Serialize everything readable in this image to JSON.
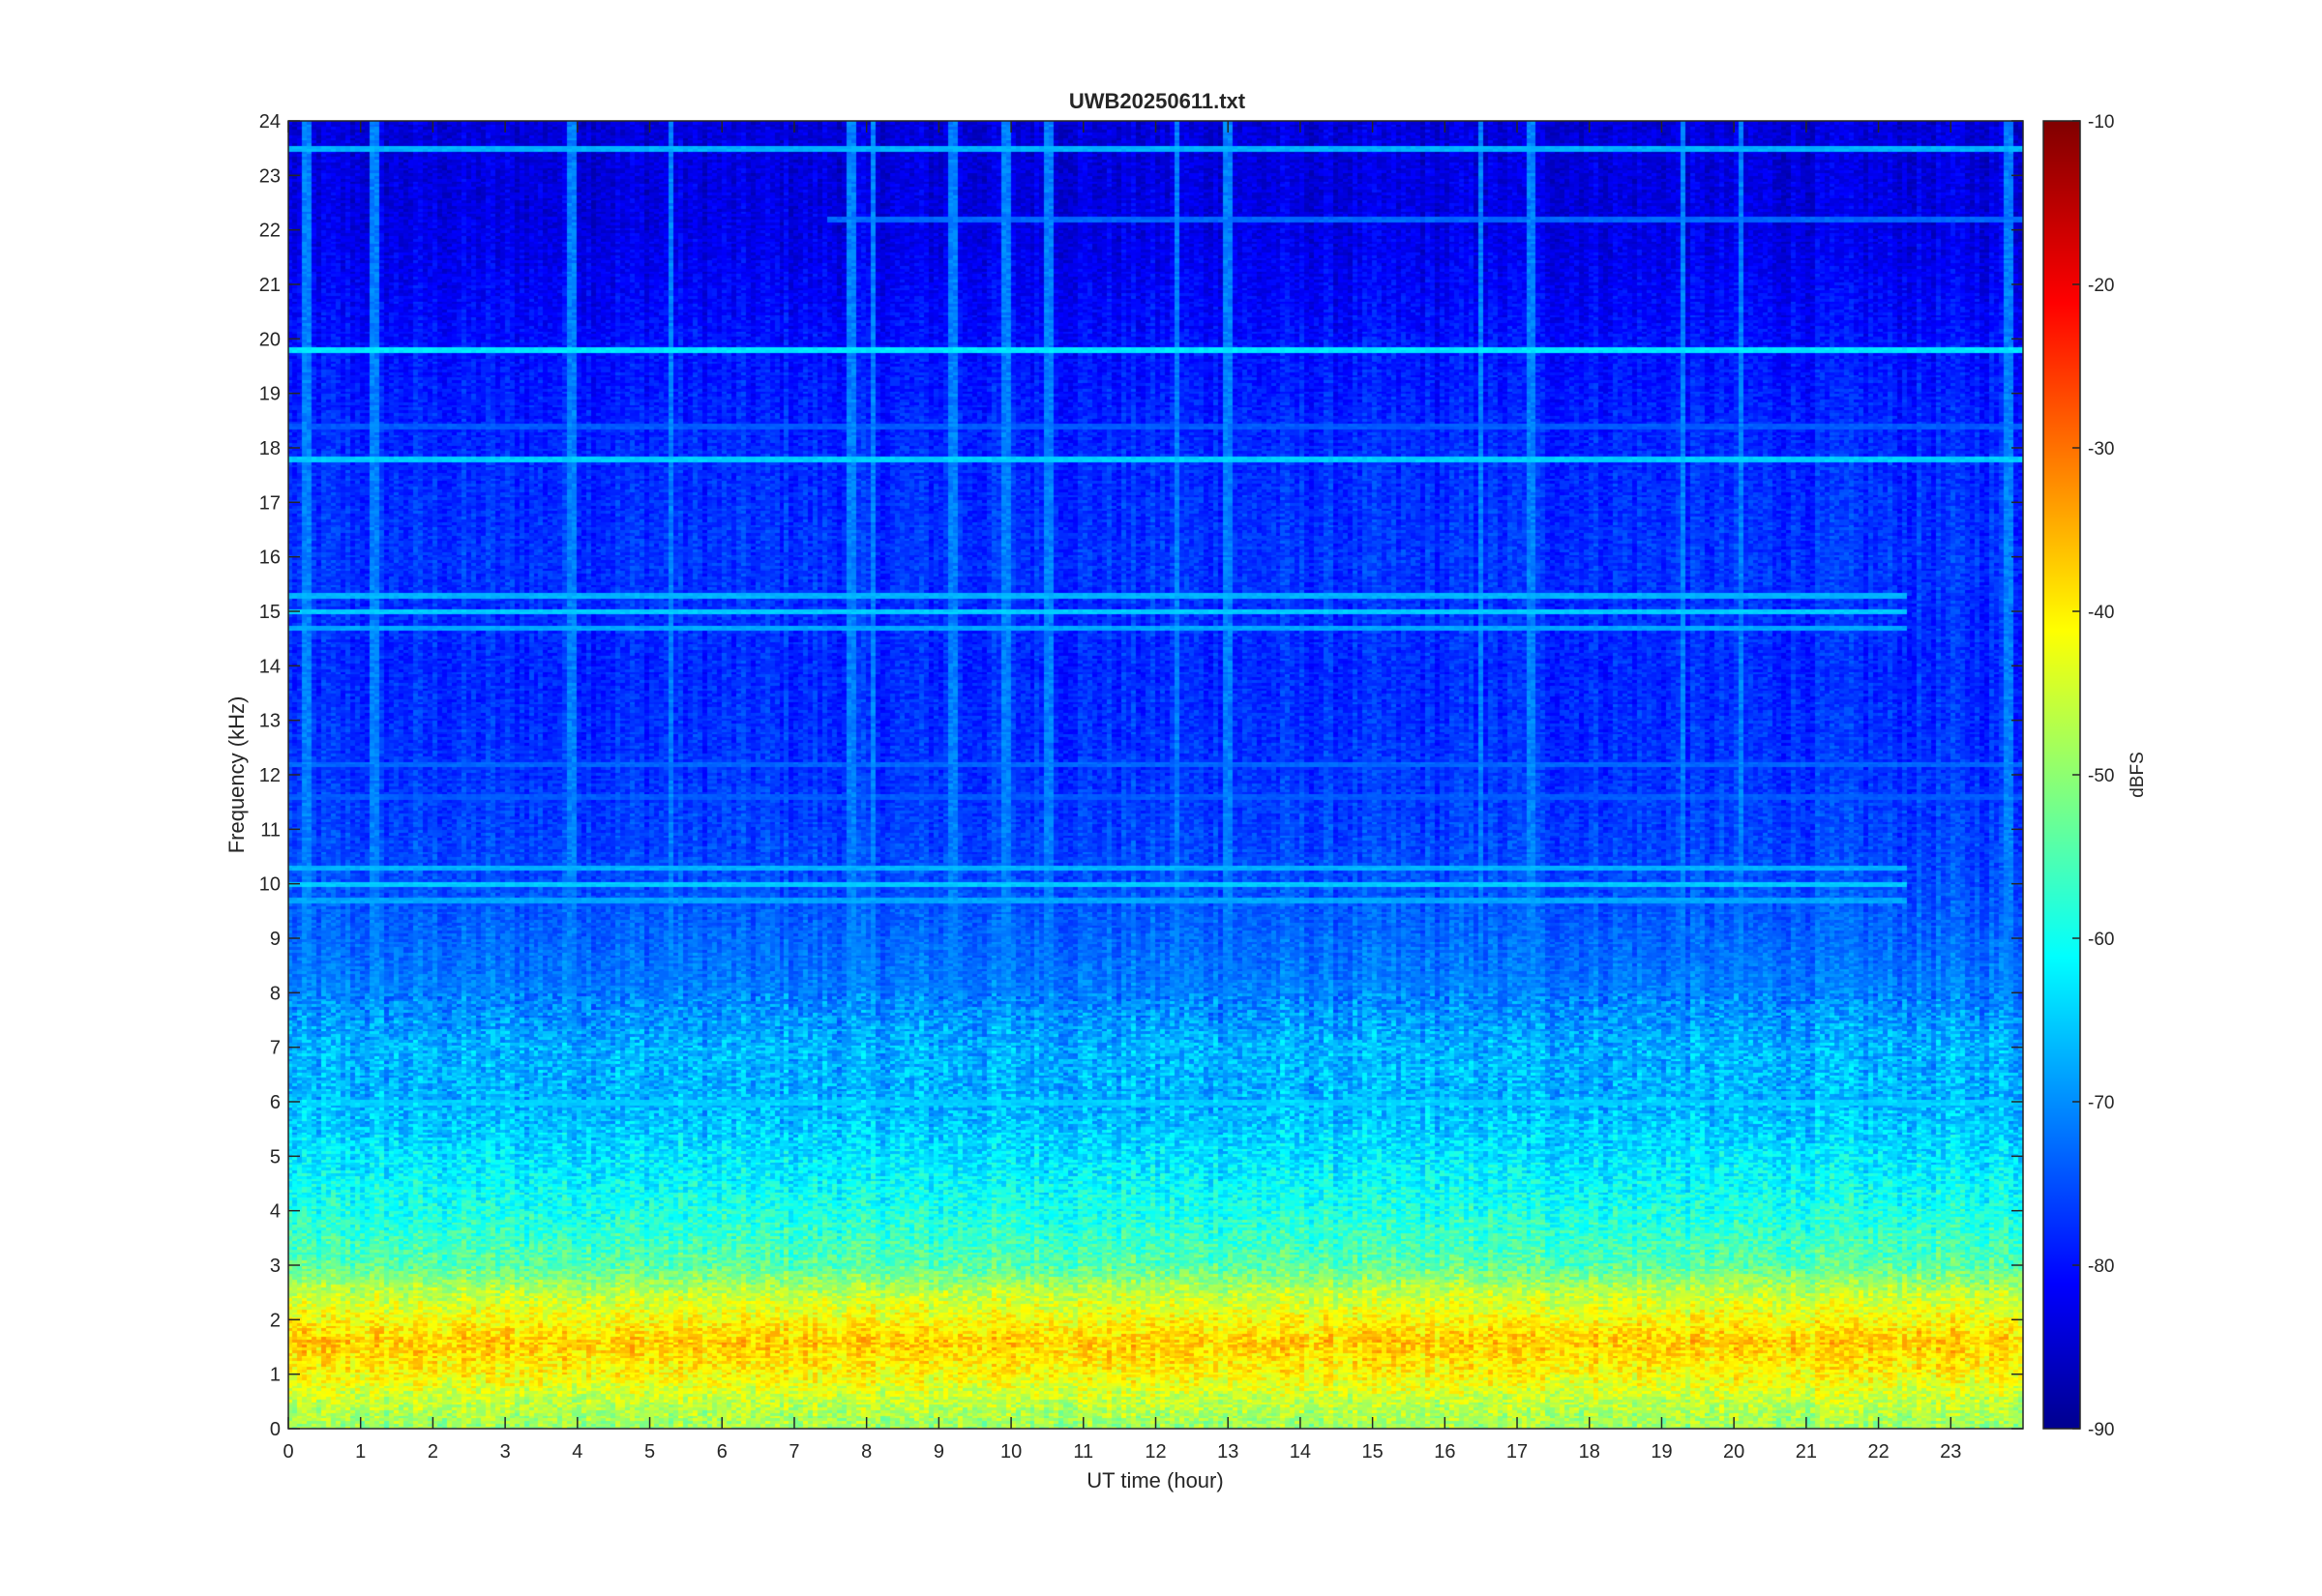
{
  "chart_data": {
    "type": "heatmap",
    "title": "UWB20250611.txt",
    "xlabel": "UT time (hour)",
    "ylabel": "Frequency (kHz)",
    "colorbar_label": "dBFS",
    "colormap": "jet",
    "xlim": [
      0,
      24
    ],
    "ylim": [
      0,
      24
    ],
    "clim": [
      -90,
      -10
    ],
    "x_ticks": [
      0,
      1,
      2,
      3,
      4,
      5,
      6,
      7,
      8,
      9,
      10,
      11,
      12,
      13,
      14,
      15,
      16,
      17,
      18,
      19,
      20,
      21,
      22,
      23
    ],
    "y_ticks": [
      0,
      1,
      2,
      3,
      4,
      5,
      6,
      7,
      8,
      9,
      10,
      11,
      12,
      13,
      14,
      15,
      16,
      17,
      18,
      19,
      20,
      21,
      22,
      23,
      24
    ],
    "colorbar_ticks": [
      -10,
      -20,
      -30,
      -40,
      -50,
      -60,
      -70,
      -80,
      -90
    ],
    "grid": false,
    "legend": "none",
    "spectral_profile_khz_dbfs": [
      [
        0,
        -48
      ],
      [
        0.5,
        -45
      ],
      [
        1,
        -40
      ],
      [
        1.6,
        -36
      ],
      [
        2,
        -40
      ],
      [
        2.5,
        -45
      ],
      [
        3,
        -53
      ],
      [
        4,
        -58
      ],
      [
        5,
        -62
      ],
      [
        6,
        -66
      ],
      [
        7,
        -66
      ],
      [
        8,
        -70
      ],
      [
        9,
        -72
      ],
      [
        10,
        -74
      ],
      [
        12,
        -76
      ],
      [
        14,
        -77
      ],
      [
        16,
        -76
      ],
      [
        18,
        -77
      ],
      [
        20,
        -79
      ],
      [
        22,
        -82
      ],
      [
        24,
        -83
      ]
    ],
    "lines_khz": [
      {
        "freq": 23.5,
        "level": -66,
        "t_start": 0,
        "t_end": 24
      },
      {
        "freq": 22.2,
        "level": -72,
        "t_start": 7.5,
        "t_end": 24
      },
      {
        "freq": 19.8,
        "level": -62,
        "t_start": 0,
        "t_end": 24
      },
      {
        "freq": 18.4,
        "level": -73,
        "t_start": 0,
        "t_end": 24
      },
      {
        "freq": 17.8,
        "level": -64,
        "t_start": 0,
        "t_end": 24
      },
      {
        "freq": 15.3,
        "level": -66,
        "t_start": 0,
        "t_end": 22.4
      },
      {
        "freq": 15.0,
        "level": -64,
        "t_start": 0,
        "t_end": 22.4
      },
      {
        "freq": 14.7,
        "level": -67,
        "t_start": 0,
        "t_end": 22.4
      },
      {
        "freq": 12.2,
        "level": -72,
        "t_start": 0,
        "t_end": 24
      },
      {
        "freq": 11.6,
        "level": -73,
        "t_start": 0,
        "t_end": 24
      },
      {
        "freq": 10.3,
        "level": -66,
        "t_start": 0,
        "t_end": 22.4
      },
      {
        "freq": 10.0,
        "level": -64,
        "t_start": 0,
        "t_end": 22.4
      },
      {
        "freq": 9.7,
        "level": -67,
        "t_start": 0,
        "t_end": 22.4
      },
      {
        "freq": 6.0,
        "level": -64,
        "t_start": 0,
        "t_end": 24
      }
    ],
    "vertical_spikes_hour": [
      0.25,
      1.2,
      3.95,
      5.3,
      7.8,
      8.1,
      9.2,
      9.95,
      10.55,
      12.3,
      13.0,
      16.5,
      17.2,
      19.3,
      20.1,
      23.8
    ]
  }
}
